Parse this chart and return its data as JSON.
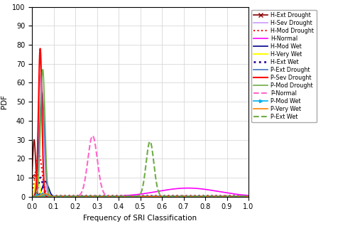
{
  "xlabel": "Frequency of SRI Classification",
  "ylabel": "PDF",
  "xlim": [
    0,
    1
  ],
  "ylim": [
    0,
    100
  ],
  "yticks": [
    0,
    10,
    20,
    30,
    40,
    50,
    60,
    70,
    80,
    90,
    100
  ],
  "xticks": [
    0,
    0.1,
    0.2,
    0.3,
    0.4,
    0.5,
    0.6,
    0.7,
    0.8,
    0.9,
    1.0
  ],
  "figsize": [
    5.0,
    3.18
  ],
  "dpi": 100,
  "curves": [
    {
      "label": "H-Ext Drought",
      "color": "#8B0000",
      "linestyle": "-",
      "lw": 1.2,
      "marker": "x",
      "markevery": 60,
      "markersize": 4,
      "peaks": [
        [
          30,
          0.01,
          0.007
        ]
      ]
    },
    {
      "label": "H-Sev Drought",
      "color": "#cc99ff",
      "linestyle": "-",
      "lw": 1.2,
      "marker": null,
      "peaks": [
        [
          65,
          0.042,
          0.011
        ]
      ]
    },
    {
      "label": "H-Mod Drought",
      "color": "#ff0000",
      "linestyle": ":",
      "lw": 1.5,
      "marker": null,
      "peaks": [
        [
          22,
          0.032,
          0.015
        ]
      ]
    },
    {
      "label": "H-Normal",
      "color": "#ff00ff",
      "linestyle": "-",
      "lw": 1.2,
      "marker": null,
      "peaks": [
        [
          4.5,
          0.72,
          0.14
        ]
      ]
    },
    {
      "label": "H-Mod Wet",
      "color": "#00008B",
      "linestyle": "-",
      "lw": 1.2,
      "marker": null,
      "peaks": [
        [
          8,
          0.062,
          0.014
        ]
      ]
    },
    {
      "label": "H-Very Wet",
      "color": "#ffff00",
      "linestyle": "-",
      "lw": 1.5,
      "marker": null,
      "peaks": [
        [
          11,
          0.024,
          0.009
        ]
      ]
    },
    {
      "label": "H-Ext Wet",
      "color": "#330099",
      "linestyle": ":",
      "lw": 2.0,
      "marker": null,
      "peaks": [
        [
          10,
          0.04,
          0.011
        ]
      ]
    },
    {
      "label": "P-Ext Drought",
      "color": "#4472c4",
      "linestyle": "-",
      "lw": 1.2,
      "marker": null,
      "peaks": [
        [
          55,
          0.046,
          0.012
        ]
      ]
    },
    {
      "label": "P-Sev Drought",
      "color": "#ff0000",
      "linestyle": "-",
      "lw": 1.5,
      "marker": null,
      "peaks": [
        [
          78,
          0.038,
          0.008
        ]
      ]
    },
    {
      "label": "P-Mod Drought",
      "color": "#70ad47",
      "linestyle": "-",
      "lw": 1.2,
      "marker": null,
      "peaks": [
        [
          67,
          0.05,
          0.01
        ]
      ]
    },
    {
      "label": "P-Normal",
      "color": "#ff66cc",
      "linestyle": "--",
      "lw": 1.5,
      "marker": null,
      "peaks": [
        [
          32,
          0.28,
          0.022
        ]
      ]
    },
    {
      "label": "P-Mod Wet",
      "color": "#00b0f0",
      "linestyle": "-",
      "lw": 1.2,
      "marker": ">",
      "markevery": 80,
      "markersize": 3,
      "peaks": [
        [
          1.5,
          0.05,
          0.015
        ]
      ]
    },
    {
      "label": "P-Very Wet",
      "color": "#ff8000",
      "linestyle": "-",
      "lw": 1.2,
      "marker": null,
      "peaks": [
        [
          1.5,
          0.06,
          0.015
        ]
      ]
    },
    {
      "label": "P-Ext Wet",
      "color": "#70ad47",
      "linestyle": "--",
      "lw": 1.5,
      "marker": null,
      "peaks": [
        [
          29,
          0.545,
          0.018
        ]
      ]
    }
  ]
}
